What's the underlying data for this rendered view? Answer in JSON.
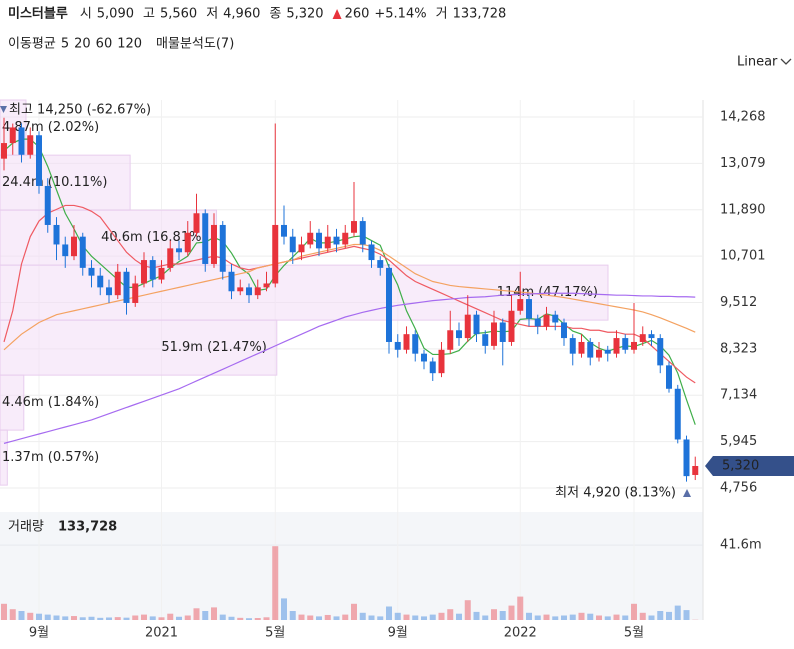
{
  "header": {
    "name": "미스터블루",
    "fields": [
      {
        "label": "시",
        "value": "5,090"
      },
      {
        "label": "고",
        "value": "5,560"
      },
      {
        "label": "저",
        "value": "4,960"
      },
      {
        "label": "종",
        "value": "5,320"
      }
    ],
    "change": "260",
    "change_pct": "+5.14%",
    "volume_label": "거",
    "volume": "133,728"
  },
  "chart_data": {
    "type": "candlestick",
    "scale": "Linear",
    "legend_title": "이동평균",
    "profile_title": "매물분석도(7)",
    "up_color": "#e8333c",
    "down_color": "#1e73d9",
    "categories": [
      null,
      null,
      null,
      null,
      "9월",
      null,
      null,
      null,
      null,
      null,
      null,
      null,
      null,
      null,
      null,
      null,
      null,
      null,
      "2021",
      null,
      null,
      null,
      null,
      null,
      null,
      null,
      null,
      null,
      null,
      null,
      null,
      "5월",
      null,
      null,
      null,
      null,
      null,
      null,
      null,
      null,
      null,
      null,
      null,
      null,
      null,
      "9월",
      null,
      null,
      null,
      null,
      null,
      null,
      null,
      null,
      null,
      null,
      null,
      null,
      null,
      "2022",
      null,
      null,
      null,
      null,
      null,
      null,
      null,
      null,
      null,
      null,
      null,
      null,
      "5월",
      null,
      null,
      null,
      null,
      null,
      null,
      null
    ],
    "ylim": [
      4320,
      14704
    ],
    "yticks": [
      {
        "value": 4756,
        "label": "4,756"
      },
      {
        "value": 5945,
        "label": "5,945"
      },
      {
        "value": 7134,
        "label": "7,134"
      },
      {
        "value": 8323,
        "label": "8,323"
      },
      {
        "value": 9512,
        "label": "9,512"
      },
      {
        "value": 10701,
        "label": "10,701"
      },
      {
        "value": 11890,
        "label": "11,890"
      },
      {
        "value": 13079,
        "label": "13,079"
      },
      {
        "value": 14268,
        "label": "14,268"
      }
    ],
    "grid": true,
    "ohlc": [
      [
        13200,
        14250,
        12900,
        13600
      ],
      [
        13600,
        14100,
        13300,
        14000
      ],
      [
        14000,
        14100,
        13100,
        13300
      ],
      [
        13300,
        14000,
        13200,
        13800
      ],
      [
        13800,
        13900,
        12300,
        12500
      ],
      [
        12500,
        12700,
        11300,
        11500
      ],
      [
        11500,
        11700,
        10600,
        11000
      ],
      [
        11000,
        11200,
        10400,
        10700
      ],
      [
        10700,
        11500,
        10600,
        11200
      ],
      [
        11200,
        11300,
        10200,
        10400
      ],
      [
        10400,
        10600,
        9900,
        10200
      ],
      [
        10200,
        10400,
        9700,
        9900
      ],
      [
        9900,
        10100,
        9500,
        9700
      ],
      [
        9700,
        10500,
        9600,
        10300
      ],
      [
        10300,
        10400,
        9200,
        9500
      ],
      [
        9500,
        10200,
        9400,
        10000
      ],
      [
        10000,
        10800,
        9900,
        10600
      ],
      [
        10600,
        10700,
        9900,
        10100
      ],
      [
        10100,
        10600,
        10000,
        10400
      ],
      [
        10400,
        11100,
        10300,
        10900
      ],
      [
        10900,
        11100,
        10600,
        10800
      ],
      [
        10800,
        11600,
        10700,
        11300
      ],
      [
        11300,
        12300,
        11200,
        11800
      ],
      [
        11800,
        11900,
        10300,
        10500
      ],
      [
        10500,
        11800,
        10400,
        11500
      ],
      [
        11500,
        11600,
        10100,
        10300
      ],
      [
        10300,
        10500,
        9600,
        9800
      ],
      [
        9800,
        10100,
        9700,
        9900
      ],
      [
        9900,
        10000,
        9500,
        9700
      ],
      [
        9700,
        10100,
        9600,
        9900
      ],
      [
        9900,
        10300,
        9800,
        10000
      ],
      [
        10000,
        14100,
        9900,
        11500
      ],
      [
        11500,
        12000,
        11000,
        11200
      ],
      [
        11200,
        11400,
        10500,
        10800
      ],
      [
        10800,
        11200,
        10600,
        11000
      ],
      [
        11000,
        11600,
        10900,
        11300
      ],
      [
        11300,
        11400,
        10700,
        10900
      ],
      [
        10900,
        11500,
        10800,
        11200
      ],
      [
        11200,
        11400,
        10800,
        11000
      ],
      [
        11000,
        11500,
        10900,
        11300
      ],
      [
        11300,
        12600,
        11200,
        11600
      ],
      [
        11600,
        11700,
        10800,
        11000
      ],
      [
        11000,
        11100,
        10400,
        10600
      ],
      [
        10600,
        10700,
        10200,
        10400
      ],
      [
        10400,
        10500,
        8200,
        8500
      ],
      [
        8500,
        8700,
        8100,
        8300
      ],
      [
        8300,
        8900,
        8200,
        8700
      ],
      [
        8700,
        8800,
        8000,
        8200
      ],
      [
        8200,
        8300,
        7800,
        8000
      ],
      [
        8000,
        8100,
        7500,
        7700
      ],
      [
        7700,
        8500,
        7600,
        8300
      ],
      [
        8300,
        9300,
        8200,
        8800
      ],
      [
        8800,
        9000,
        8400,
        8600
      ],
      [
        8600,
        9700,
        8500,
        9200
      ],
      [
        9200,
        9300,
        8500,
        8700
      ],
      [
        8700,
        8800,
        8200,
        8400
      ],
      [
        8400,
        9300,
        8300,
        9000
      ],
      [
        9000,
        9100,
        7900,
        8500
      ],
      [
        8500,
        9700,
        8400,
        9300
      ],
      [
        9300,
        10300,
        9200,
        9600
      ],
      [
        9600,
        9700,
        8900,
        9100
      ],
      [
        9100,
        9200,
        8700,
        8900
      ],
      [
        8900,
        9400,
        8800,
        9200
      ],
      [
        9200,
        9300,
        8800,
        9000
      ],
      [
        9000,
        9100,
        8400,
        8600
      ],
      [
        8600,
        8700,
        7900,
        8200
      ],
      [
        8200,
        8700,
        8100,
        8500
      ],
      [
        8500,
        8600,
        7900,
        8100
      ],
      [
        8100,
        8500,
        8000,
        8300
      ],
      [
        8300,
        8400,
        8000,
        8200
      ],
      [
        8200,
        8800,
        8100,
        8600
      ],
      [
        8600,
        8700,
        8200,
        8300
      ],
      [
        8300,
        9500,
        8200,
        8500
      ],
      [
        8500,
        8900,
        8400,
        8700
      ],
      [
        8700,
        8800,
        8400,
        8600
      ],
      [
        8600,
        8700,
        7700,
        7900
      ],
      [
        7900,
        8000,
        7200,
        7300
      ],
      [
        7300,
        7400,
        5900,
        6000
      ],
      [
        6000,
        6100,
        4920,
        5060
      ],
      [
        5090,
        5560,
        4960,
        5320
      ]
    ],
    "series": [
      {
        "name": "5",
        "color": "#3fae49",
        "values": [
          13400,
          13600,
          13700,
          13700,
          13500,
          13000,
          12400,
          11800,
          11400,
          10960,
          10700,
          10500,
          10300,
          10100,
          9900,
          9900,
          10000,
          10100,
          10200,
          10400,
          10560,
          10700,
          11040,
          11060,
          11180,
          11080,
          10780,
          10400,
          10240,
          9820,
          9860,
          10200,
          10460,
          10680,
          10900,
          11160,
          11040,
          11040,
          11080,
          11140,
          11200,
          11220,
          11100,
          10980,
          10420,
          9960,
          9300,
          8840,
          8340,
          8180,
          8180,
          8200,
          8280,
          8520,
          8720,
          8740,
          8780,
          8760,
          8780,
          9080,
          9100,
          9080,
          9220,
          9160,
          8960,
          8780,
          8700,
          8480,
          8340,
          8260,
          8340,
          8400,
          8380,
          8460,
          8540,
          8400,
          8160,
          7700,
          7020,
          6380
        ]
      },
      {
        "name": "20",
        "color": "#ef5a62",
        "values": [
          8500,
          9300,
          10500,
          11200,
          11600,
          11800,
          11900,
          12000,
          12000,
          11950,
          11850,
          11700,
          11400,
          11100,
          10800,
          10600,
          10450,
          10400,
          10450,
          10500,
          10500,
          10550,
          10600,
          10650,
          10700,
          10650,
          10500,
          10400,
          10350,
          10400,
          10450,
          10500,
          10550,
          10600,
          10650,
          10700,
          10750,
          10800,
          10850,
          10900,
          10950,
          10900,
          10850,
          10750,
          10600,
          10400,
          10200,
          10050,
          9950,
          9850,
          9750,
          9650,
          9550,
          9450,
          9350,
          9250,
          9150,
          9050,
          9000,
          8950,
          8900,
          8900,
          8900,
          8900,
          8900,
          8850,
          8850,
          8800,
          8800,
          8750,
          8750,
          8700,
          8700,
          8600,
          8400,
          8200,
          8000,
          7800,
          7600,
          7450
        ]
      },
      {
        "name": "60",
        "color": "#f4a261",
        "values": [
          8300,
          8500,
          8700,
          8850,
          9000,
          9100,
          9200,
          9250,
          9300,
          9350,
          9400,
          9450,
          9500,
          9550,
          9600,
          9650,
          9700,
          9750,
          9800,
          9850,
          9900,
          9950,
          10000,
          10050,
          10100,
          10150,
          10200,
          10250,
          10300,
          10400,
          10450,
          10500,
          10550,
          10600,
          10700,
          10750,
          10800,
          10850,
          10900,
          10950,
          11000,
          11000,
          10950,
          10850,
          10700,
          10550,
          10400,
          10250,
          10150,
          10050,
          10000,
          9950,
          9920,
          9900,
          9880,
          9860,
          9840,
          9820,
          9800,
          9780,
          9760,
          9730,
          9700,
          9670,
          9640,
          9600,
          9560,
          9520,
          9480,
          9440,
          9400,
          9360,
          9320,
          9270,
          9200,
          9120,
          9030,
          8940,
          8850,
          8750
        ]
      },
      {
        "name": "120",
        "color": "#a66bf0",
        "values": [
          5900,
          5960,
          6020,
          6080,
          6140,
          6200,
          6260,
          6320,
          6380,
          6440,
          6500,
          6580,
          6660,
          6740,
          6820,
          6900,
          6980,
          7060,
          7140,
          7220,
          7300,
          7400,
          7500,
          7600,
          7700,
          7800,
          7900,
          8000,
          8100,
          8200,
          8300,
          8400,
          8500,
          8600,
          8700,
          8800,
          8900,
          8980,
          9060,
          9140,
          9200,
          9260,
          9310,
          9360,
          9400,
          9440,
          9470,
          9500,
          9530,
          9560,
          9580,
          9600,
          9620,
          9640,
          9650,
          9660,
          9680,
          9700,
          9710,
          9720,
          9730,
          9740,
          9750,
          9750,
          9750,
          9750,
          9740,
          9730,
          9720,
          9710,
          9700,
          9700,
          9690,
          9680,
          9680,
          9670,
          9670,
          9660,
          9660,
          9650
        ]
      }
    ],
    "volume_profile": {
      "bins": [
        14704,
        13290,
        11880,
        10470,
        9060,
        7650,
        6240,
        4830
      ],
      "values": [
        4870000,
        24400000,
        40600000,
        114000000,
        51900000,
        4460000,
        1370000
      ],
      "value_labels": [
        "4.87m (2.02%)",
        "24.4m (10.11%)",
        "40.6m (16.81%)",
        "114m (47.17%)",
        "51.9m (21.47%)",
        "4.46m (1.84%)",
        "1.37m (0.57%)"
      ]
    },
    "max_label": "최고 14,250 (-62.67%)",
    "min_label": "최저 4,920 (8.13%)",
    "last_price_label": "5,320",
    "volume": {
      "title": "거래량",
      "last": "133,728",
      "ylim": [
        0,
        60000000
      ],
      "yticks": [
        {
          "value": 41600000,
          "label": "41.6m"
        }
      ],
      "values": [
        9000000,
        6000000,
        5000000,
        4000000,
        3500000,
        3000000,
        2500000,
        2000000,
        2200000,
        1500000,
        1800000,
        1200000,
        1400000,
        1600000,
        1300000,
        2500000,
        3000000,
        2000000,
        1500000,
        3500000,
        1800000,
        2500000,
        6500000,
        5000000,
        7000000,
        3000000,
        1800000,
        1200000,
        1000000,
        1100000,
        1500000,
        41000000,
        12000000,
        5000000,
        3000000,
        2500000,
        2000000,
        2800000,
        2000000,
        3000000,
        9000000,
        4000000,
        2500000,
        2000000,
        7500000,
        4000000,
        3000000,
        2500000,
        2000000,
        3000000,
        4000000,
        6000000,
        3500000,
        11000000,
        4500000,
        2500000,
        6000000,
        5000000,
        8000000,
        13000000,
        4000000,
        2500000,
        3000000,
        2000000,
        2500000,
        3000000,
        4000000,
        3500000,
        2500000,
        2000000,
        3000000,
        2500000,
        9000000,
        4000000,
        2500000,
        5000000,
        4500000,
        8000000,
        5500000,
        133728
      ]
    }
  }
}
